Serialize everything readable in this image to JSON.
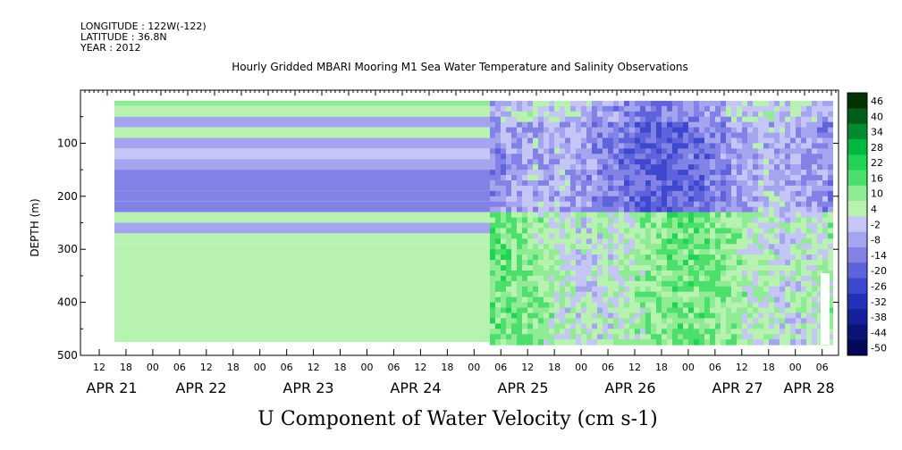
{
  "header": {
    "longitude": "LONGITUDE : 122W(-122)",
    "latitude": "LATITUDE : 36.8N",
    "year": "YEAR : 2012"
  },
  "chart_data": {
    "type": "heatmap",
    "title": "Hourly Gridded MBARI Mooring M1 Sea Water Temperature and Salinity Observations",
    "xlabel": "U Component of Water Velocity (cm s-1)",
    "ylabel": "DEPTH (m)",
    "ylim": [
      500,
      0
    ],
    "y_ticks": [
      100,
      200,
      300,
      400,
      500
    ],
    "x_hour_ticks": [
      "12",
      "18",
      "00",
      "06",
      "12",
      "18",
      "00",
      "06",
      "12",
      "18",
      "00",
      "06",
      "12",
      "18",
      "00",
      "06",
      "12",
      "18",
      "00",
      "06",
      "12",
      "18",
      "00",
      "06",
      "12",
      "18",
      "00",
      "06"
    ],
    "x_date_labels": [
      "APR 21",
      "APR 22",
      "APR 23",
      "APR 24",
      "APR 25",
      "APR 26",
      "APR 27",
      "APR 28"
    ],
    "colorbar": {
      "labels": [
        "46",
        "40",
        "34",
        "28",
        "22",
        "16",
        "10",
        "4",
        "-2",
        "-8",
        "-14",
        "-20",
        "-26",
        "-32",
        "-38",
        "-44",
        "-50"
      ],
      "colors": [
        "#003300",
        "#005e1a",
        "#008c2e",
        "#00b840",
        "#1fd452",
        "#4ddf6c",
        "#8feb94",
        "#b7f2b0",
        "#c6c6f6",
        "#a4a4ef",
        "#8282e6",
        "#5e63dc",
        "#3e48cf",
        "#2330b8",
        "#15209a",
        "#0b1476",
        "#04085a"
      ]
    },
    "early_period_profile": {
      "note_free": true,
      "depths": [
        20,
        40,
        60,
        80,
        100,
        120,
        140,
        160,
        180,
        200,
        220,
        240,
        260,
        280,
        300,
        340,
        380,
        420,
        460
      ],
      "values": [
        10,
        8,
        -4,
        6,
        -6,
        2,
        -8,
        -10,
        -12,
        -14,
        -10,
        4,
        -8,
        4,
        4,
        6,
        4,
        6,
        4
      ]
    },
    "late_period_summary": {
      "upper_layer_0_230m": "mostly negative (-2 to -20)",
      "lower_layer_230_480m": "mostly positive (4 to 28)"
    }
  }
}
